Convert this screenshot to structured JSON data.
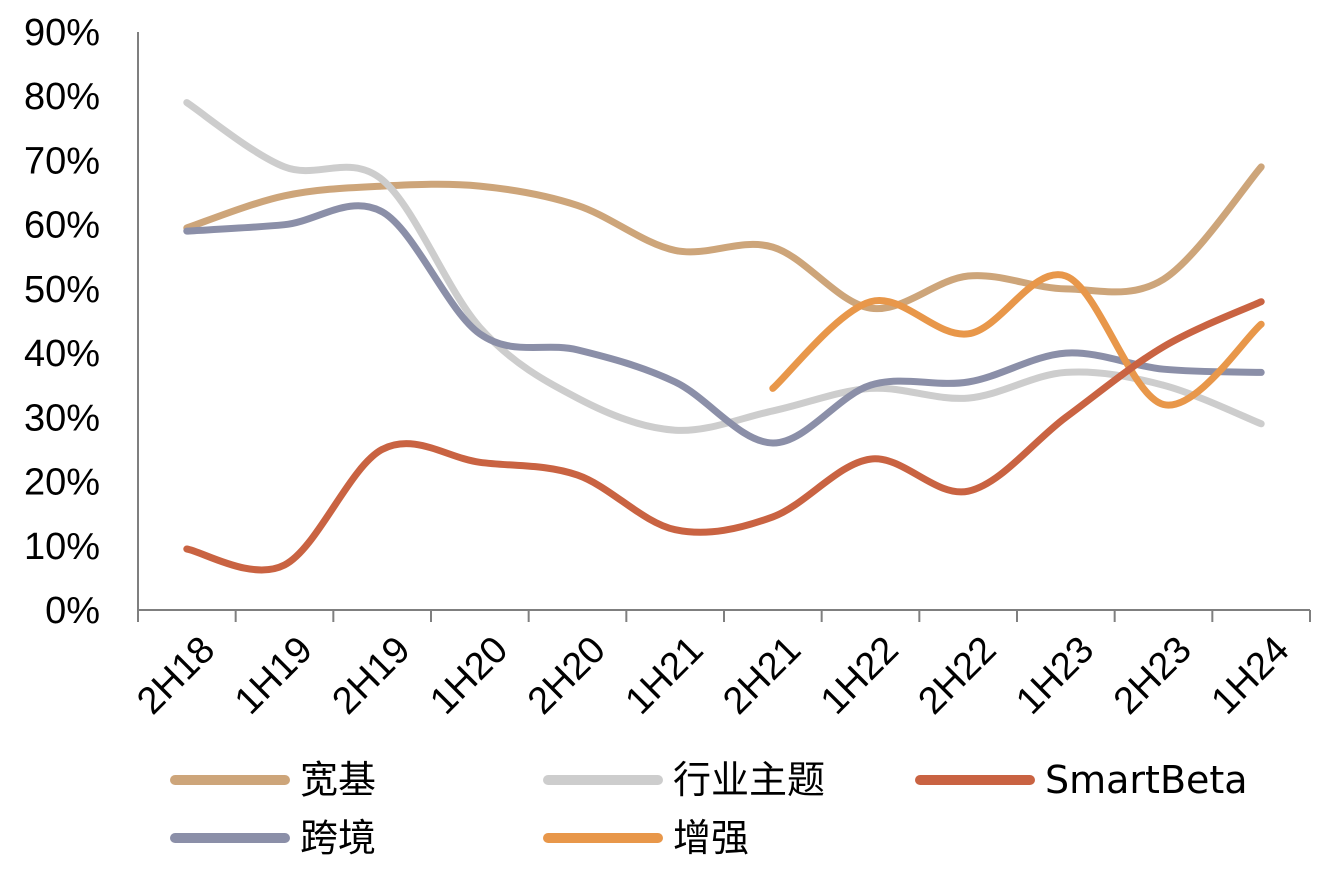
{
  "chart_data": {
    "type": "line",
    "title": "",
    "xlabel": "",
    "ylabel": "",
    "categories": [
      "2H18",
      "1H19",
      "2H19",
      "1H20",
      "2H20",
      "1H21",
      "2H21",
      "1H22",
      "2H22",
      "1H23",
      "2H23",
      "1H24"
    ],
    "y_ticks": [
      "0%",
      "10%",
      "20%",
      "30%",
      "40%",
      "50%",
      "60%",
      "70%",
      "80%",
      "90%"
    ],
    "ylim": [
      0,
      90
    ],
    "grid": false,
    "legend_position": "bottom",
    "series": [
      {
        "name": "宽基",
        "color": "#CDA57A",
        "values": [
          59.5,
          64.5,
          66,
          66,
          63,
          56,
          56.5,
          47,
          52,
          50,
          51.5,
          69
        ]
      },
      {
        "name": "行业主题",
        "color": "#CDCDCD",
        "values": [
          79,
          69,
          67,
          44,
          33,
          28,
          31,
          34.5,
          33,
          37,
          35,
          29
        ]
      },
      {
        "name": "SmartBeta",
        "color": "#C96342",
        "values": [
          9.5,
          7,
          25,
          23,
          21,
          12.5,
          14.5,
          23.5,
          18.5,
          30,
          41,
          48
        ]
      },
      {
        "name": "跨境",
        "color": "#8B8FA8",
        "values": [
          59,
          60,
          62,
          43,
          40.5,
          35.5,
          26,
          35,
          35.5,
          40,
          37.5,
          37
        ]
      },
      {
        "name": "增强",
        "color": "#E8974A",
        "values": [
          null,
          null,
          null,
          null,
          null,
          null,
          34.5,
          48,
          43,
          52,
          32,
          44.5
        ]
      }
    ]
  }
}
